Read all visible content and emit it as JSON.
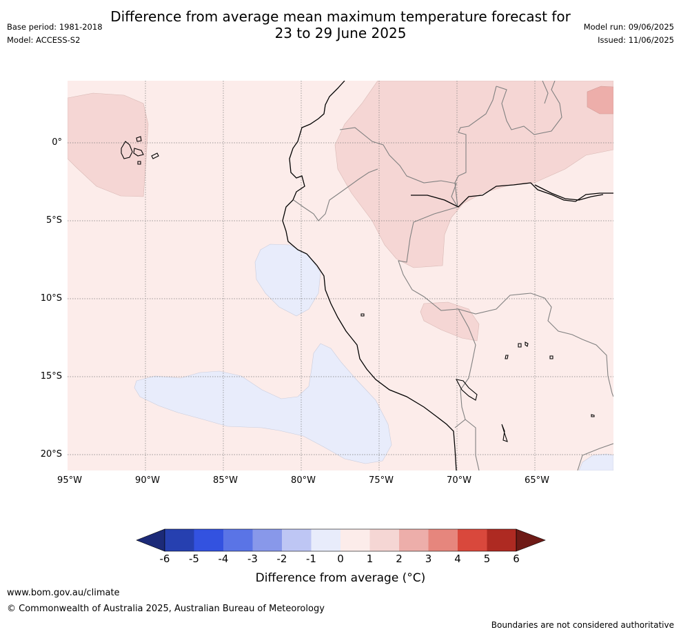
{
  "header": {
    "title_line1": "Difference from average mean maximum temperature forecast for",
    "title_line2": "23 to 29 June 2025",
    "base_period": "Base period: 1981-2018",
    "model": "Model: ACCESS-S2",
    "model_run": "Model run: 09/06/2025",
    "issued": "Issued: 11/06/2025"
  },
  "map": {
    "lat_labels": [
      "0°",
      "5°S",
      "10°S",
      "15°S",
      "20°S"
    ],
    "lon_labels": [
      "95°W",
      "90°W",
      "85°W",
      "80°W",
      "75°W",
      "70°W",
      "65°W"
    ],
    "background_anomaly_class": "0 to 1",
    "regions": [
      {
        "name": "Galapagos area",
        "class": "1 to 2"
      },
      {
        "name": "Northern Amazon",
        "class": "1 to 2"
      },
      {
        "name": "Far north-east",
        "class": "2 to 3"
      },
      {
        "name": "Southern Peru",
        "class": "1 to 2"
      },
      {
        "name": "Off northern Peru coast",
        "class": "-1 to 0"
      },
      {
        "name": "South-east Pacific",
        "class": "-1 to 0"
      },
      {
        "name": "South-east corner",
        "class": "-1 to 0"
      }
    ]
  },
  "colorbar": {
    "ticks": [
      "-6",
      "-5",
      "-4",
      "-3",
      "-2",
      "-1",
      "0",
      "1",
      "2",
      "3",
      "4",
      "5",
      "6"
    ],
    "colors": [
      "#1c2a78",
      "#2640b0",
      "#3352e0",
      "#5a74e6",
      "#8898ea",
      "#bec6f4",
      "#e8ecfb",
      "#fcecea",
      "#f5d6d4",
      "#edaeaa",
      "#e6867d",
      "#d9483c",
      "#ae2a22",
      "#6e1a16"
    ],
    "label": "Difference from average (°C)"
  },
  "footer": {
    "url": "www.bom.gov.au/climate",
    "copyright": "© Commonwealth of Australia 2025, Australian Bureau of Meteorology",
    "note": "Boundaries are not considered authoritative"
  }
}
